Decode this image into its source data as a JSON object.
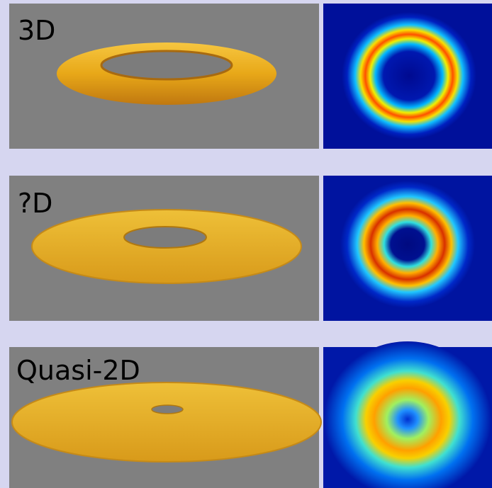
{
  "rows": [
    {
      "label": "3D"
    },
    {
      "label": "?D"
    },
    {
      "label": "Quasi-2D"
    }
  ]
}
